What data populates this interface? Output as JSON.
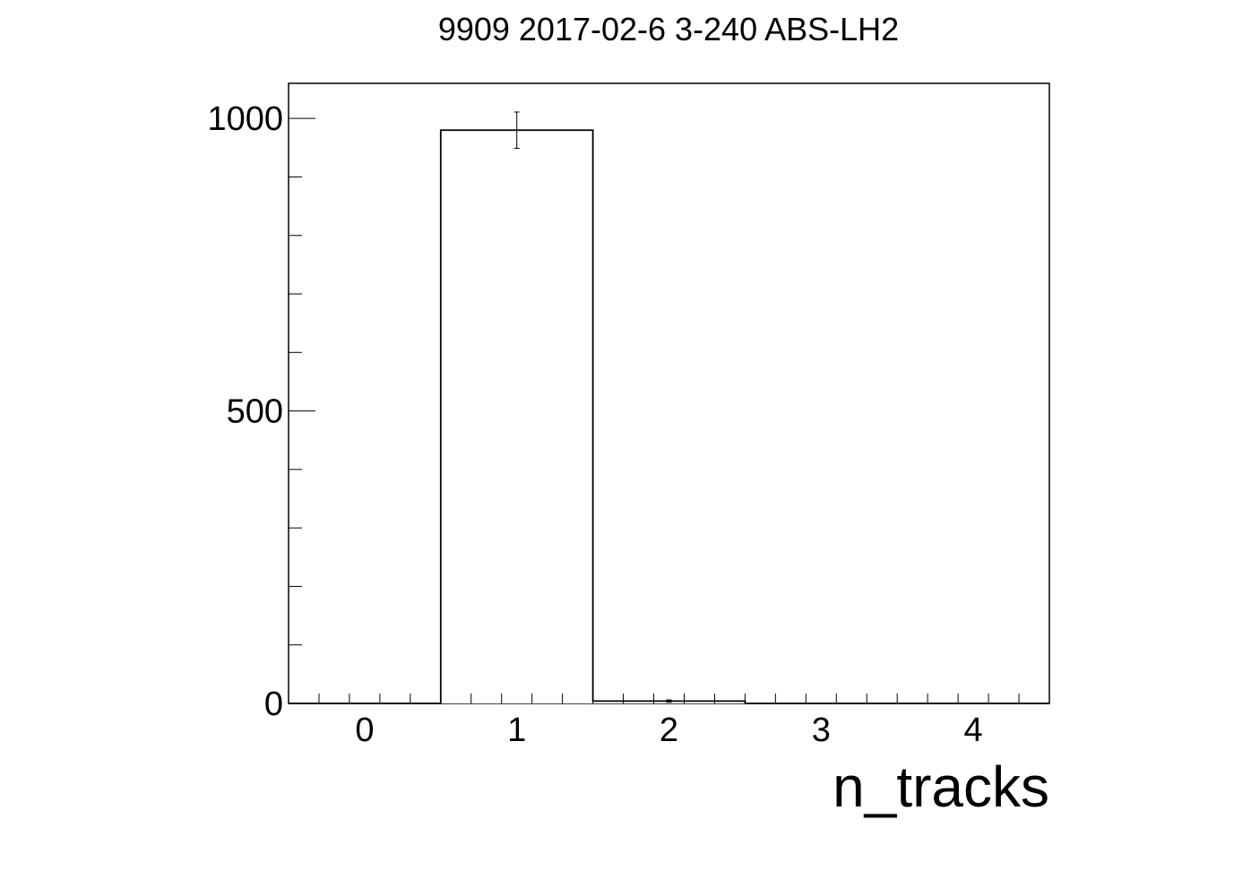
{
  "chart_data": {
    "type": "bar",
    "title": "9909 2017-02-6 3-240 ABS-LH2",
    "xlabel": "n_tracks",
    "ylabel": "",
    "xlim": [
      -0.5,
      4.5
    ],
    "ylim": [
      0,
      1060
    ],
    "x_ticks": [
      0,
      1,
      2,
      3,
      4
    ],
    "y_ticks": [
      0,
      500,
      1000
    ],
    "bins": [
      {
        "low": -0.5,
        "high": 0.5,
        "value": 0,
        "error": 0
      },
      {
        "low": 0.5,
        "high": 1.5,
        "value": 980,
        "error": 31
      },
      {
        "low": 1.5,
        "high": 2.5,
        "value": 4,
        "error": 2
      },
      {
        "low": 2.5,
        "high": 3.5,
        "value": 0,
        "error": 0
      },
      {
        "low": 3.5,
        "high": 4.5,
        "value": 0,
        "error": 0
      }
    ],
    "grid": false,
    "legend": "none",
    "line_color": "#000000",
    "fill_color": "#ffffff"
  }
}
